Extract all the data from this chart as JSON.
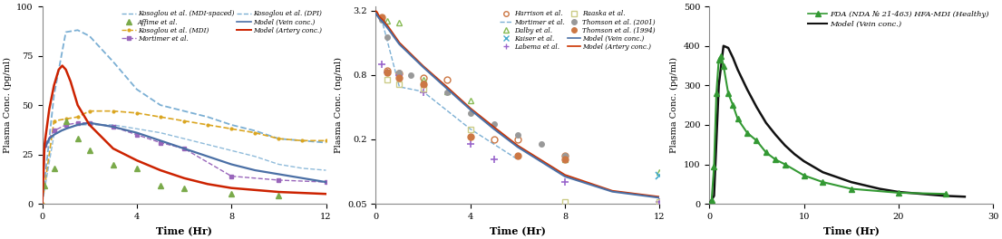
{
  "panel1": {
    "ylabel": "Plasma Conc. (pg/ml)",
    "xlabel": "Time (Hr)",
    "xlim": [
      0,
      12
    ],
    "ylim": [
      0,
      100
    ],
    "yticks": [
      0,
      25,
      50,
      75,
      100
    ],
    "xticks": [
      0,
      4,
      8,
      12
    ],
    "model_vein": {
      "t": [
        0,
        0.1,
        0.3,
        0.5,
        0.8,
        1.0,
        1.5,
        2,
        3,
        4,
        5,
        6,
        7,
        8,
        9,
        10,
        11,
        12
      ],
      "y": [
        0,
        28,
        33,
        35,
        37,
        38,
        40,
        41,
        39,
        36,
        32,
        28,
        24,
        20,
        17,
        15,
        13,
        11
      ]
    },
    "model_artery": {
      "t": [
        0,
        0.1,
        0.3,
        0.5,
        0.7,
        0.85,
        1.0,
        1.2,
        1.5,
        2,
        3,
        4,
        5,
        6,
        7,
        8,
        9,
        10,
        11,
        12
      ],
      "y": [
        0,
        30,
        48,
        60,
        68,
        70,
        68,
        62,
        50,
        40,
        28,
        22,
        17,
        13,
        10,
        8,
        7,
        6,
        5.5,
        5
      ]
    },
    "kos_mdi_spaced": {
      "t": [
        0,
        0.5,
        1.0,
        1.5,
        2,
        3,
        4,
        5,
        6,
        7,
        8,
        9,
        10,
        11,
        12
      ],
      "y": [
        0,
        55,
        87,
        88,
        85,
        72,
        58,
        50,
        47,
        44,
        40,
        37,
        33,
        32,
        31
      ]
    },
    "kos_mdi": {
      "t": [
        0,
        0.5,
        1.0,
        1.5,
        2,
        3,
        4,
        5,
        6,
        7,
        8,
        9,
        10,
        11,
        12
      ],
      "y": [
        0,
        42,
        43,
        44,
        47,
        47,
        46,
        44,
        42,
        40,
        38,
        36,
        33,
        32,
        32
      ]
    },
    "kos_dpi": {
      "t": [
        0,
        0.5,
        1,
        1.5,
        2,
        3,
        4,
        5,
        6,
        7,
        8,
        9,
        10,
        11,
        12
      ],
      "y": [
        0,
        35,
        38,
        40,
        40,
        40,
        38,
        36,
        33,
        30,
        27,
        24,
        20,
        18,
        17
      ]
    },
    "affine": {
      "t": [
        0.1,
        0.5,
        1,
        1.5,
        2,
        3,
        4,
        5,
        6,
        8,
        10
      ],
      "y": [
        9,
        18,
        42,
        33,
        27,
        20,
        18,
        9,
        8,
        5,
        4
      ]
    },
    "mortimer": {
      "t": [
        0.1,
        0.5,
        1,
        1.5,
        2,
        3,
        4,
        5,
        6,
        8,
        10,
        12
      ],
      "y": [
        30,
        37,
        40,
        41,
        41,
        39,
        35,
        31,
        28,
        14,
        12,
        11
      ]
    }
  },
  "panel2": {
    "ylabel": "Plasma Conc. (ng/ml)",
    "xlabel": "Time (Hr)",
    "xlim": [
      0,
      12
    ],
    "ylim_log": [
      0.05,
      3.5
    ],
    "yticks_log": [
      0.05,
      0.2,
      0.8,
      3.2
    ],
    "ytick_labels": [
      "0.05",
      "0.2",
      "0.8",
      "3.2"
    ],
    "xticks": [
      0,
      4,
      8,
      12
    ],
    "model_vein": {
      "t": [
        0.01,
        0.05,
        0.15,
        0.3,
        0.5,
        1,
        2,
        3,
        4,
        5,
        6,
        8,
        10,
        12
      ],
      "y": [
        3.0,
        2.9,
        2.7,
        2.5,
        2.2,
        1.55,
        0.95,
        0.6,
        0.38,
        0.25,
        0.17,
        0.09,
        0.065,
        0.057
      ]
    },
    "model_artery": {
      "t": [
        0.01,
        0.05,
        0.15,
        0.3,
        0.5,
        1,
        2,
        3,
        4,
        5,
        6,
        8,
        10,
        12
      ],
      "y": [
        3.15,
        3.1,
        2.8,
        2.6,
        2.3,
        1.6,
        0.97,
        0.62,
        0.39,
        0.26,
        0.175,
        0.093,
        0.066,
        0.058
      ]
    },
    "harrison": {
      "t": [
        0.5,
        1,
        2,
        3,
        5,
        6,
        8
      ],
      "y": [
        0.88,
        0.83,
        0.75,
        0.72,
        0.2,
        0.2,
        0.14
      ]
    },
    "dalby": {
      "t": [
        0.25,
        0.5,
        1,
        2,
        3,
        4,
        8,
        12
      ],
      "y": [
        2.75,
        2.55,
        2.45,
        0.72,
        0.56,
        0.46,
        0.13,
        0.1
      ]
    },
    "labema": {
      "t": [
        0.25,
        0.5,
        1,
        2,
        4,
        5,
        8,
        12
      ],
      "y": [
        1.0,
        0.85,
        0.8,
        0.55,
        0.18,
        0.13,
        0.08,
        0.052
      ]
    },
    "thomson2001": {
      "t": [
        0.25,
        0.5,
        1,
        1.5,
        2,
        3,
        4,
        5,
        6,
        7,
        8
      ],
      "y": [
        2.6,
        1.8,
        0.85,
        0.8,
        0.65,
        0.55,
        0.35,
        0.28,
        0.22,
        0.18,
        0.14
      ]
    },
    "mortimer2_t": [
      0.3,
      1.0,
      2.0,
      4.0,
      6.0
    ],
    "mortimer2_y": [
      2.4,
      0.62,
      0.56,
      0.25,
      0.13
    ],
    "kaiser": {
      "t": [
        12
      ],
      "y": [
        0.092
      ]
    },
    "raaska": {
      "t": [
        0.5,
        1,
        2,
        4,
        8,
        12
      ],
      "y": [
        0.72,
        0.66,
        0.6,
        0.25,
        0.052,
        0.052
      ]
    },
    "thomson1994": {
      "t": [
        0.25,
        0.5,
        1,
        2,
        4,
        6,
        8
      ],
      "y": [
        2.8,
        0.85,
        0.75,
        0.65,
        0.21,
        0.14,
        0.13
      ]
    }
  },
  "panel3": {
    "ylabel": "Plasma Conc. (pg/ml)",
    "xlabel": "Time (Hr)",
    "xlim": [
      0,
      30
    ],
    "ylim": [
      0,
      500
    ],
    "yticks": [
      0,
      100,
      200,
      300,
      400,
      500
    ],
    "xticks": [
      0,
      10,
      20,
      30
    ],
    "model_vein": {
      "t": [
        0,
        0.5,
        1.0,
        1.5,
        2,
        2.5,
        3,
        4,
        5,
        6,
        7,
        8,
        9,
        10,
        12,
        15,
        18,
        20,
        25,
        27
      ],
      "y": [
        0,
        20,
        300,
        400,
        395,
        370,
        340,
        290,
        245,
        205,
        175,
        148,
        126,
        108,
        80,
        55,
        38,
        30,
        20,
        18
      ]
    },
    "fda": {
      "t": [
        0.25,
        0.5,
        0.75,
        1.0,
        1.25,
        1.5,
        2,
        2.5,
        3,
        4,
        5,
        6,
        7,
        8,
        10,
        12,
        15,
        20,
        25
      ],
      "y": [
        10,
        95,
        280,
        365,
        375,
        350,
        280,
        250,
        215,
        180,
        160,
        130,
        112,
        100,
        72,
        55,
        38,
        28,
        25
      ]
    }
  },
  "colors": {
    "kos_mdi_spaced": "#7bafd4",
    "kos_mdi": "#daa520",
    "kos_dpi": "#7bafd4",
    "affine": "#7aaa4a",
    "mortimer": "#9966bb",
    "model_vein_p1": "#4a6fa5",
    "model_artery_p1": "#cc2200",
    "model_vein_p2": "#4a6fa5",
    "model_artery_p2": "#cc3300",
    "harrison": "#cc7744",
    "dalby": "#88bb55",
    "labema": "#9966cc",
    "thomson2001": "#999999",
    "mortimer2": "#7bafd4",
    "kaiser": "#44aacc",
    "raaska": "#cccc88",
    "thomson1994": "#cc7744",
    "fda": "#339933",
    "model_vein_p3": "#111111"
  }
}
